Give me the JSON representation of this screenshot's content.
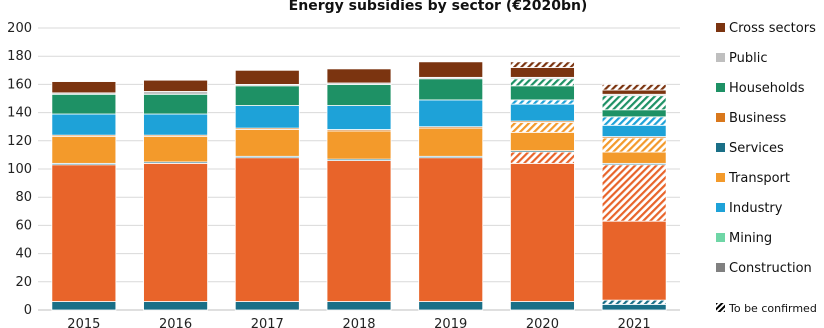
{
  "chart_data": {
    "type": "bar",
    "stacked": true,
    "title": "Energy subsidies by sector (€2020bn)",
    "categories": [
      "2015",
      "2016",
      "2017",
      "2018",
      "2019",
      "2020",
      "2021"
    ],
    "ylim": [
      0,
      200
    ],
    "yticks": [
      0,
      20,
      40,
      60,
      80,
      100,
      120,
      140,
      160,
      180,
      200
    ],
    "grid": true,
    "legend_position": "right",
    "legend": [
      "Cross sectors",
      "Public",
      "Households",
      "Business",
      "Services",
      "Transport",
      "Industry",
      "Mining",
      "Construction"
    ],
    "hatched_note": "To be confirmed",
    "segments_order": [
      "Services (base)",
      "Industry",
      "Industry (tbc)",
      "Services",
      "Services (tbc)",
      "Transport",
      "Transport (tbc)",
      "Business",
      "Business (tbc)",
      "Households",
      "Households (tbc)",
      "Public",
      "Cross sectors",
      "Cross sectors (tbc)"
    ],
    "stacks": [
      [
        {
          "s": "Services",
          "v": 6
        },
        {
          "s": "Industry",
          "v": 97
        },
        {
          "s": "Services",
          "v": 1
        },
        {
          "s": "Transport",
          "v": 19
        },
        {
          "s": "Business",
          "v": 1
        },
        {
          "s": "Industry_top",
          "v": 15
        },
        {
          "s": "Households",
          "v": 14
        },
        {
          "s": "Public",
          "v": 1
        },
        {
          "s": "Cross sectors",
          "v": 8
        }
      ],
      [
        {
          "s": "Services",
          "v": 6
        },
        {
          "s": "Industry",
          "v": 98
        },
        {
          "s": "Services",
          "v": 1
        },
        {
          "s": "Transport",
          "v": 18
        },
        {
          "s": "Business",
          "v": 1
        },
        {
          "s": "Industry_top",
          "v": 15
        },
        {
          "s": "Households",
          "v": 14
        },
        {
          "s": "Public",
          "v": 2
        },
        {
          "s": "Cross sectors",
          "v": 8
        }
      ],
      [
        {
          "s": "Services",
          "v": 6
        },
        {
          "s": "Industry",
          "v": 102
        },
        {
          "s": "Services",
          "v": 1
        },
        {
          "s": "Transport",
          "v": 19
        },
        {
          "s": "Business",
          "v": 1
        },
        {
          "s": "Industry_top",
          "v": 16
        },
        {
          "s": "Households",
          "v": 14
        },
        {
          "s": "Public",
          "v": 1
        },
        {
          "s": "Cross sectors",
          "v": 10
        }
      ],
      [
        {
          "s": "Services",
          "v": 6
        },
        {
          "s": "Industry",
          "v": 100
        },
        {
          "s": "Services",
          "v": 1
        },
        {
          "s": "Transport",
          "v": 20
        },
        {
          "s": "Business",
          "v": 1
        },
        {
          "s": "Industry_top",
          "v": 17
        },
        {
          "s": "Households",
          "v": 15
        },
        {
          "s": "Public",
          "v": 1
        },
        {
          "s": "Cross sectors",
          "v": 10
        }
      ],
      [
        {
          "s": "Services",
          "v": 6
        },
        {
          "s": "Industry",
          "v": 102
        },
        {
          "s": "Services",
          "v": 1
        },
        {
          "s": "Transport",
          "v": 20
        },
        {
          "s": "Business",
          "v": 1
        },
        {
          "s": "Industry_top",
          "v": 19
        },
        {
          "s": "Households",
          "v": 15
        },
        {
          "s": "Public",
          "v": 1
        },
        {
          "s": "Cross sectors",
          "v": 11
        }
      ],
      [
        {
          "s": "Services",
          "v": 6
        },
        {
          "s": "Industry",
          "v": 98
        },
        {
          "s": "Industry",
          "v": 8,
          "tbc": true
        },
        {
          "s": "Services",
          "v": 1
        },
        {
          "s": "Transport",
          "v": 13
        },
        {
          "s": "Transport",
          "v": 7,
          "tbc": true
        },
        {
          "s": "Business",
          "v": 1
        },
        {
          "s": "Industry_top",
          "v": 12
        },
        {
          "s": "Industry_top",
          "v": 3,
          "tbc": true
        },
        {
          "s": "Households",
          "v": 10
        },
        {
          "s": "Households",
          "v": 5,
          "tbc": true
        },
        {
          "s": "Public",
          "v": 1
        },
        {
          "s": "Cross sectors",
          "v": 7
        },
        {
          "s": "Cross sectors",
          "v": 4,
          "tbc": true
        }
      ],
      [
        {
          "s": "Services",
          "v": 4
        },
        {
          "s": "Services",
          "v": 3,
          "tbc": true
        },
        {
          "s": "Industry",
          "v": 56
        },
        {
          "s": "Industry",
          "v": 40,
          "tbc": true
        },
        {
          "s": "Services",
          "v": 1
        },
        {
          "s": "Transport",
          "v": 8
        },
        {
          "s": "Transport",
          "v": 10,
          "tbc": true
        },
        {
          "s": "Business",
          "v": 1
        },
        {
          "s": "Industry_top",
          "v": 8
        },
        {
          "s": "Industry_top",
          "v": 6,
          "tbc": true
        },
        {
          "s": "Households",
          "v": 5
        },
        {
          "s": "Households",
          "v": 10,
          "tbc": true
        },
        {
          "s": "Public",
          "v": 1
        },
        {
          "s": "Cross sectors",
          "v": 3
        },
        {
          "s": "Cross sectors",
          "v": 4,
          "tbc": true
        }
      ]
    ],
    "colors": {
      "Cross sectors": "#7b3410",
      "Public": "#bfbfbf",
      "Households": "#1e9165",
      "Business": "#d9781c",
      "Services": "#1a6f87",
      "Transport": "#f39a2b",
      "Industry": "#e8642a",
      "Industry_top": "#1ea2d8",
      "Mining": "#6fd6a6",
      "Construction": "#808080"
    },
    "legend_colors": {
      "Cross sectors": "#7b3410",
      "Public": "#bfbfbf",
      "Households": "#1e9165",
      "Business": "#d9781c",
      "Services": "#1a6f87",
      "Transport": "#f39a2b",
      "Industry": "#1ea2d8",
      "Mining": "#6fd6a6",
      "Construction": "#808080"
    }
  }
}
